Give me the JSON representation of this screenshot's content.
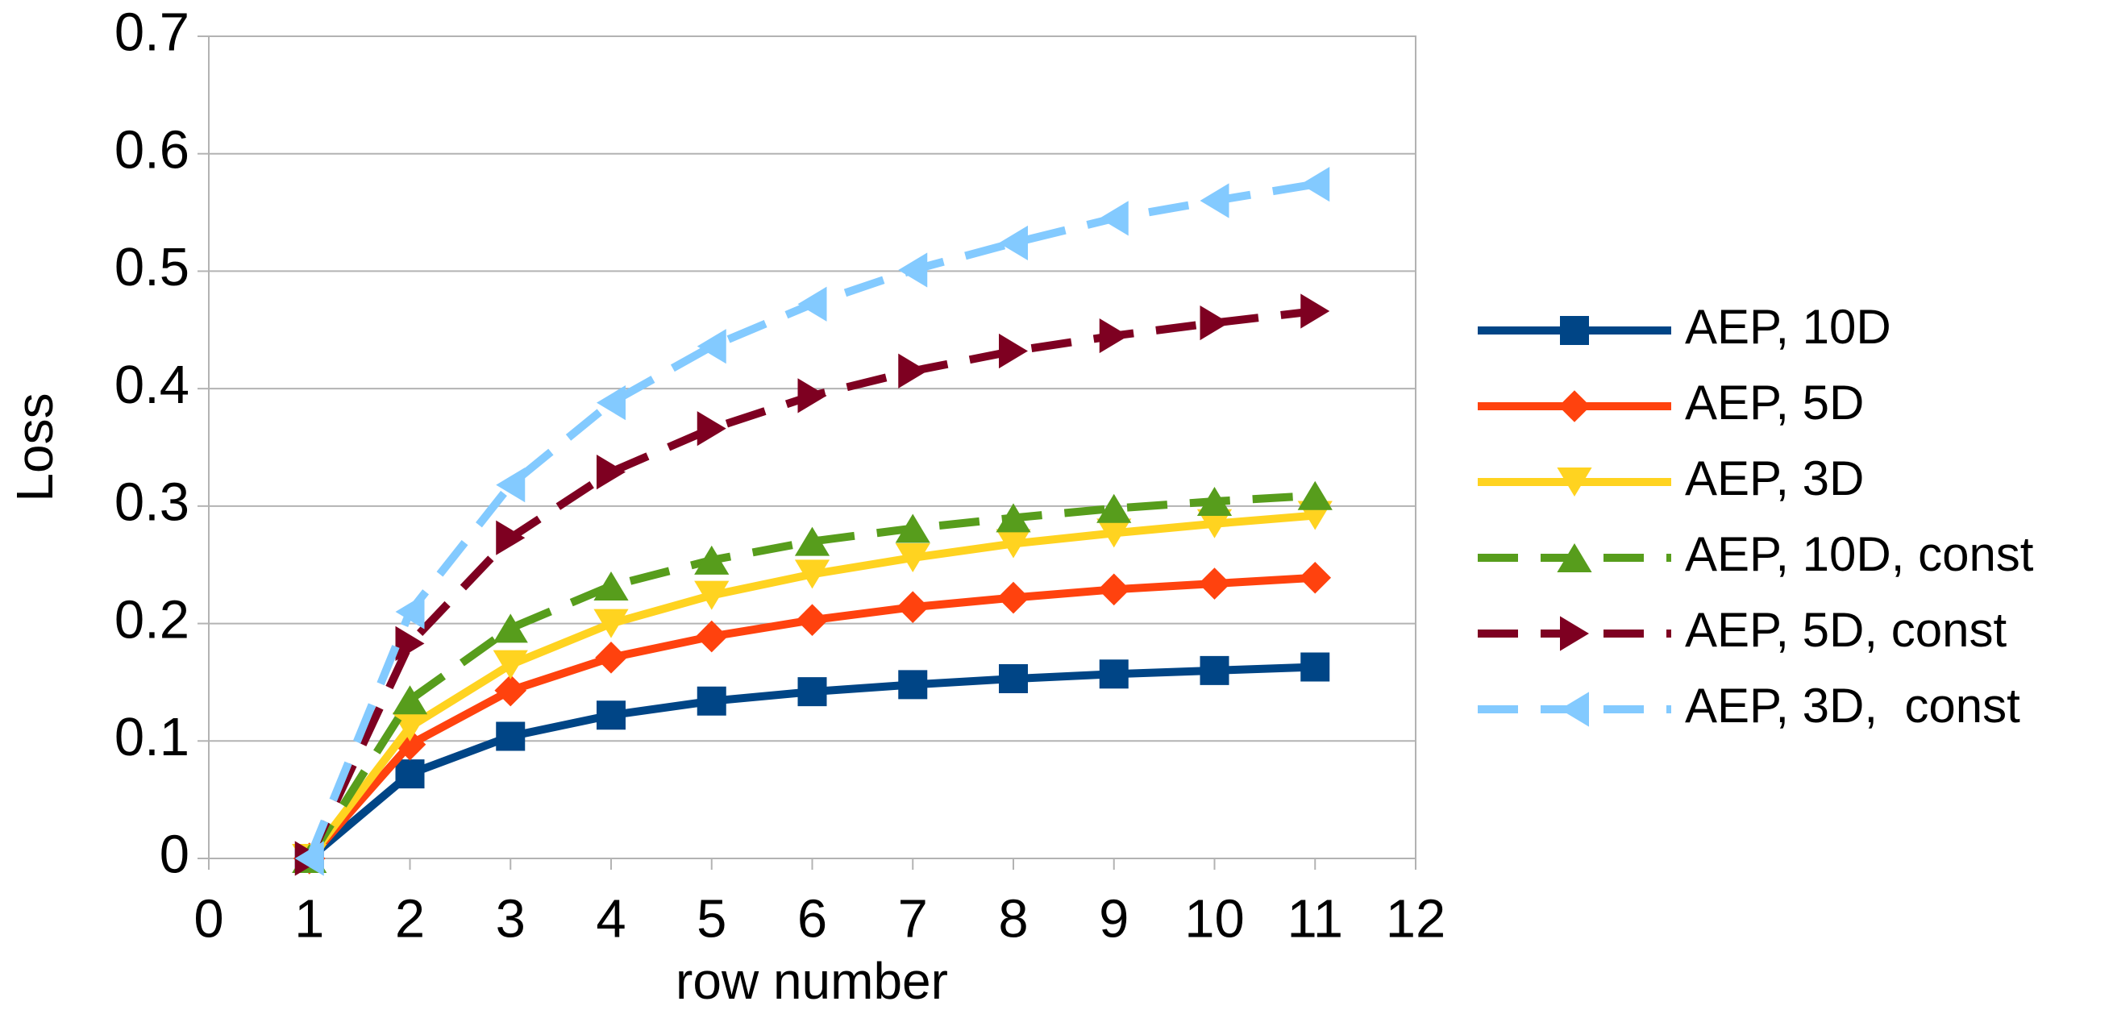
{
  "chart_data": {
    "type": "line",
    "x_label": "row number",
    "y_label": "Loss",
    "x": [
      1,
      2,
      3,
      4,
      5,
      6,
      7,
      8,
      9,
      10,
      11
    ],
    "xlim": [
      0,
      12
    ],
    "xticks": [
      0,
      1,
      2,
      3,
      4,
      5,
      6,
      7,
      8,
      9,
      10,
      11,
      12
    ],
    "ylim": [
      0,
      0.7
    ],
    "yticks": [
      0,
      0.1,
      0.2,
      0.3,
      0.4,
      0.5,
      0.6,
      0.7
    ],
    "grid": true,
    "legend": "right",
    "series": [
      {
        "name": "AEP, 10D",
        "color": "#004586",
        "marker": "square",
        "dashed": false,
        "values": [
          0,
          0.072,
          0.104,
          0.122,
          0.134,
          0.142,
          0.148,
          0.153,
          0.157,
          0.16,
          0.163
        ]
      },
      {
        "name": "AEP, 5D",
        "color": "#ff420e",
        "marker": "diamond",
        "dashed": false,
        "values": [
          0,
          0.097,
          0.143,
          0.171,
          0.189,
          0.203,
          0.214,
          0.222,
          0.229,
          0.234,
          0.239
        ]
      },
      {
        "name": "AEP, 3D",
        "color": "#ffd320",
        "marker": "triangle-down",
        "dashed": false,
        "values": [
          0,
          0.112,
          0.165,
          0.2,
          0.224,
          0.242,
          0.256,
          0.268,
          0.277,
          0.285,
          0.292
        ]
      },
      {
        "name": "AEP, 10D, const",
        "color": "#579d1c",
        "marker": "triangle-up",
        "dashed": true,
        "values": [
          0,
          0.135,
          0.196,
          0.232,
          0.254,
          0.27,
          0.281,
          0.29,
          0.298,
          0.304,
          0.309
        ]
      },
      {
        "name": "AEP, 5D, const",
        "color": "#7e0021",
        "marker": "triangle-right",
        "dashed": true,
        "values": [
          0,
          0.183,
          0.273,
          0.329,
          0.366,
          0.394,
          0.415,
          0.432,
          0.445,
          0.456,
          0.466
        ]
      },
      {
        "name": "AEP, 3D,  const",
        "color": "#83caff",
        "marker": "triangle-left",
        "dashed": true,
        "values": [
          0,
          0.21,
          0.318,
          0.388,
          0.436,
          0.472,
          0.501,
          0.524,
          0.545,
          0.56,
          0.574
        ]
      }
    ]
  }
}
